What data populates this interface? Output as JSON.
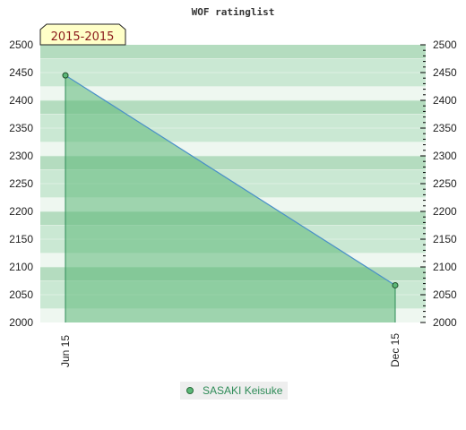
{
  "chart_data": {
    "type": "area",
    "title": "WOF ratinglist",
    "period_label": "2015-2015",
    "ylim": [
      2000,
      2500
    ],
    "yticks": [
      2000,
      2050,
      2100,
      2150,
      2200,
      2250,
      2300,
      2350,
      2400,
      2450,
      2500
    ],
    "x_ticks": [
      "Jun 15",
      "Dec 15"
    ],
    "series": [
      {
        "name": "SASAKI Keisuke",
        "points": [
          {
            "x": "Jun 15",
            "y": 2445
          },
          {
            "x": "Dec 15",
            "y": 2067
          }
        ]
      }
    ],
    "grid": true,
    "legend_position": "bottom-center",
    "colors": {
      "line": "#4a90c8",
      "fill": "#5cb878",
      "marker": "#3a9a5a",
      "band_dark": "#b4dcbf",
      "band_mid": "#cae8d3",
      "band_light": "#eef7f0",
      "badge_bg": "#ffffc8",
      "legend_text": "#2e8b57"
    }
  }
}
